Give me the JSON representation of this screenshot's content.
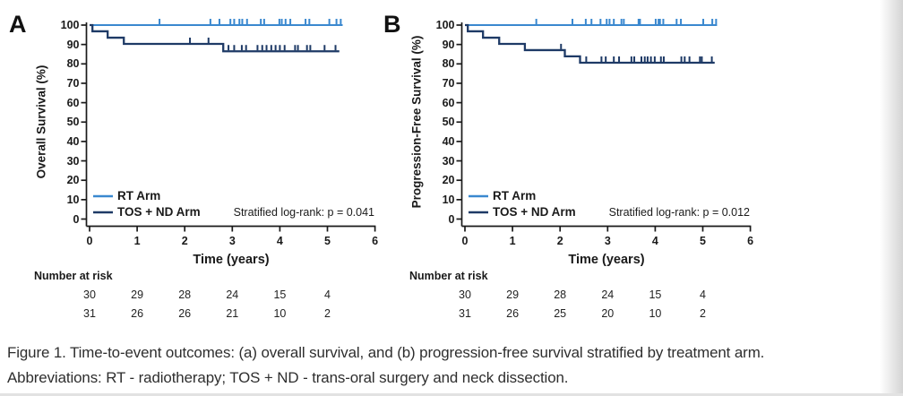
{
  "caption": {
    "line1": "Figure 1. Time-to-event outcomes: (a) overall survival, and (b) progression-free survival stratified by treatment arm.",
    "line2": "Abbreviations: RT - radiotherapy; TOS + ND - trans-oral surgery and neck dissection."
  },
  "colors": {
    "rt_arm": "#3A88CF",
    "tos_nd_arm": "#1E3A66",
    "axis": "#1a1a1a"
  },
  "chart_data": [
    {
      "type": "line",
      "subtype": "kaplan-meier-step",
      "panel_label": "A",
      "xlabel": "Time (years)",
      "ylabel": "Overall Survival (%)",
      "xlim": [
        0,
        6
      ],
      "ylim": [
        0,
        100
      ],
      "x_ticks": [
        0,
        1,
        2,
        3,
        4,
        5,
        6
      ],
      "y_ticks": [
        0,
        10,
        20,
        30,
        40,
        50,
        60,
        70,
        80,
        90,
        100
      ],
      "grid": false,
      "legend_position": "lower-left",
      "stat_text": "Stratified log-rank: p = 0.041",
      "number_at_risk_label": "Number at risk",
      "series": [
        {
          "name": "RT Arm",
          "color": "#3A88CF",
          "start": [
            0,
            100
          ],
          "drops": [],
          "end_time": 5.32,
          "censor_marks": [
            [
              1.47,
              100
            ],
            [
              2.54,
              100
            ],
            [
              2.73,
              100
            ],
            [
              2.96,
              100
            ],
            [
              3.04,
              100
            ],
            [
              3.15,
              100
            ],
            [
              3.21,
              100
            ],
            [
              3.31,
              100
            ],
            [
              3.6,
              100
            ],
            [
              3.67,
              100
            ],
            [
              3.99,
              100
            ],
            [
              4.04,
              100
            ],
            [
              4.12,
              100
            ],
            [
              4.22,
              100
            ],
            [
              4.54,
              100
            ],
            [
              4.62,
              100
            ],
            [
              5.04,
              100
            ],
            [
              5.19,
              100
            ],
            [
              5.28,
              100
            ]
          ]
        },
        {
          "name": "TOS + ND Arm",
          "color": "#1E3A66",
          "start": [
            0,
            100
          ],
          "drops": [
            [
              0.06,
              96.8
            ],
            [
              0.38,
              93.5
            ],
            [
              0.72,
              90.3
            ],
            [
              2.81,
              86.5
            ]
          ],
          "end_time": 5.25,
          "censor_marks": [
            [
              2.11,
              90.3
            ],
            [
              2.5,
              90.3
            ],
            [
              2.92,
              86.5
            ],
            [
              3.04,
              86.5
            ],
            [
              3.2,
              86.5
            ],
            [
              3.29,
              86.5
            ],
            [
              3.53,
              86.5
            ],
            [
              3.63,
              86.5
            ],
            [
              3.72,
              86.5
            ],
            [
              3.82,
              86.5
            ],
            [
              3.91,
              86.5
            ],
            [
              4.0,
              86.5
            ],
            [
              4.1,
              86.5
            ],
            [
              4.32,
              86.5
            ],
            [
              4.38,
              86.5
            ],
            [
              4.57,
              86.5
            ],
            [
              4.64,
              86.5
            ],
            [
              4.94,
              86.5
            ],
            [
              5.17,
              86.5
            ]
          ]
        }
      ],
      "number_at_risk": {
        "times": [
          0,
          1,
          2,
          3,
          4,
          5
        ],
        "rows": [
          {
            "series": "RT Arm",
            "counts": [
              30,
              29,
              28,
              24,
              15,
              4
            ]
          },
          {
            "series": "TOS + ND Arm",
            "counts": [
              31,
              26,
              26,
              21,
              10,
              2
            ]
          }
        ]
      }
    },
    {
      "type": "line",
      "subtype": "kaplan-meier-step",
      "panel_label": "B",
      "xlabel": "Time (years)",
      "ylabel": "Progression-Free Survival (%)",
      "xlim": [
        0,
        6
      ],
      "ylim": [
        0,
        100
      ],
      "x_ticks": [
        0,
        1,
        2,
        3,
        4,
        5,
        6
      ],
      "y_ticks": [
        0,
        10,
        20,
        30,
        40,
        50,
        60,
        70,
        80,
        90,
        100
      ],
      "grid": false,
      "legend_position": "lower-left",
      "stat_text": "Stratified log-rank: p = 0.012",
      "number_at_risk_label": "Number at risk",
      "series": [
        {
          "name": "RT Arm",
          "color": "#3A88CF",
          "start": [
            0,
            100
          ],
          "drops": [],
          "end_time": 5.3,
          "censor_marks": [
            [
              1.5,
              100
            ],
            [
              2.26,
              100
            ],
            [
              2.54,
              100
            ],
            [
              2.66,
              100
            ],
            [
              2.85,
              100
            ],
            [
              2.98,
              100
            ],
            [
              3.04,
              100
            ],
            [
              3.13,
              100
            ],
            [
              3.29,
              100
            ],
            [
              3.34,
              100
            ],
            [
              3.65,
              100
            ],
            [
              3.68,
              100
            ],
            [
              4.01,
              100
            ],
            [
              4.07,
              100
            ],
            [
              4.1,
              100
            ],
            [
              4.17,
              100
            ],
            [
              4.45,
              100
            ],
            [
              4.54,
              100
            ],
            [
              5.01,
              100
            ],
            [
              5.2,
              100
            ],
            [
              5.28,
              100
            ]
          ]
        },
        {
          "name": "TOS + ND Arm",
          "color": "#1E3A66",
          "start": [
            0,
            100
          ],
          "drops": [
            [
              0.06,
              96.8
            ],
            [
              0.38,
              93.5
            ],
            [
              0.72,
              90.3
            ],
            [
              1.26,
              87.1
            ],
            [
              2.1,
              83.9
            ],
            [
              2.42,
              80.6
            ]
          ],
          "end_time": 5.25,
          "censor_marks": [
            [
              2.02,
              87.1
            ],
            [
              2.55,
              80.6
            ],
            [
              2.87,
              80.6
            ],
            [
              2.96,
              80.6
            ],
            [
              3.13,
              80.6
            ],
            [
              3.24,
              80.6
            ],
            [
              3.5,
              80.6
            ],
            [
              3.56,
              80.6
            ],
            [
              3.71,
              80.6
            ],
            [
              3.78,
              80.6
            ],
            [
              3.84,
              80.6
            ],
            [
              3.91,
              80.6
            ],
            [
              3.99,
              80.6
            ],
            [
              4.12,
              80.6
            ],
            [
              4.18,
              80.6
            ],
            [
              4.55,
              80.6
            ],
            [
              4.62,
              80.6
            ],
            [
              4.72,
              80.6
            ],
            [
              4.94,
              80.6
            ],
            [
              4.98,
              80.6
            ],
            [
              5.19,
              80.6
            ]
          ]
        }
      ],
      "number_at_risk": {
        "times": [
          0,
          1,
          2,
          3,
          4,
          5
        ],
        "rows": [
          {
            "series": "RT Arm",
            "counts": [
              30,
              29,
              28,
              24,
              15,
              4
            ]
          },
          {
            "series": "TOS + ND Arm",
            "counts": [
              31,
              26,
              25,
              20,
              10,
              2
            ]
          }
        ]
      }
    }
  ]
}
